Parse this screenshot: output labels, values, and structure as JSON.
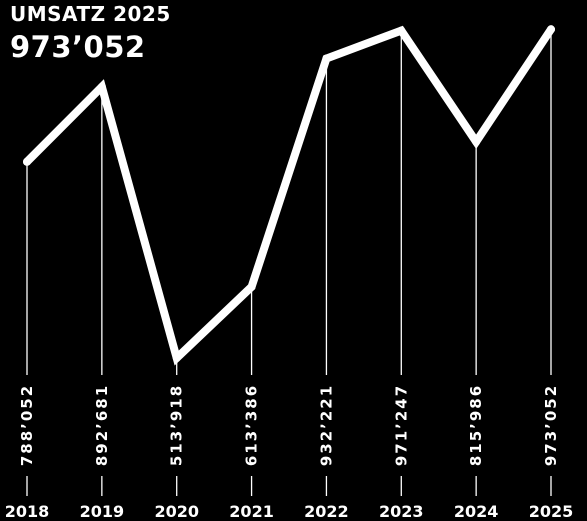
{
  "header": {
    "title": "UMSATZ 2025",
    "total": "973’052"
  },
  "colors": {
    "background": "#000000",
    "line": "#ffffff"
  },
  "chart_data": {
    "type": "line",
    "title": "UMSATZ 2025",
    "categories": [
      "2018",
      "2019",
      "2020",
      "2021",
      "2022",
      "2023",
      "2024",
      "2025"
    ],
    "series": [
      {
        "values": [
          788052,
          892681,
          513918,
          613386,
          932221,
          971247,
          815986,
          973052
        ],
        "value_labels": [
          "788’052",
          "892’681",
          "513’918",
          "613’386",
          "932’221",
          "971’247",
          "815’986",
          "973’052"
        ]
      }
    ],
    "ylim": [
      500000,
      1000000
    ],
    "grid": false,
    "legend": "none"
  }
}
